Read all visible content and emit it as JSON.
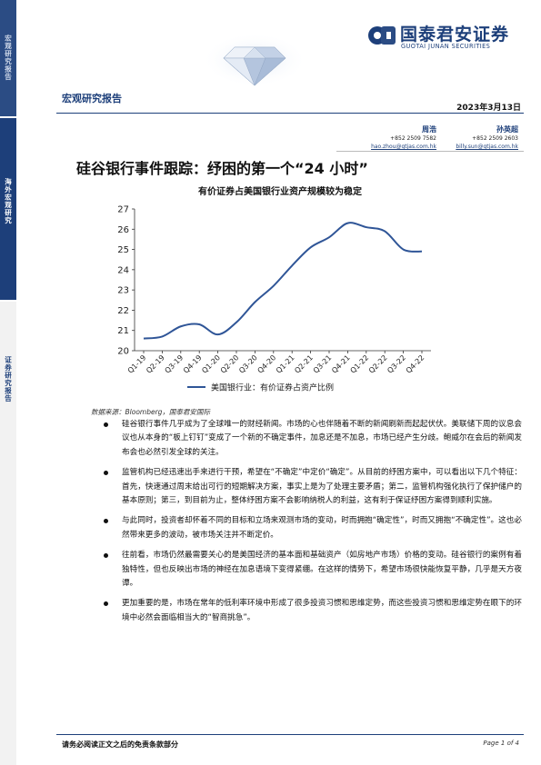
{
  "sidebar": {
    "section_1": "宏观研究报告",
    "section_2": "海外宏观研究",
    "section_3": "证券研究报告"
  },
  "logo": {
    "name_cn": "国泰君安证券",
    "name_en": "GUOTAI JUNAN SECURITIES",
    "brand_color": "#1d3f7a"
  },
  "header": {
    "report_type": "宏观研究报告",
    "date": "2023年3月13日"
  },
  "authors": [
    {
      "name": "周浩",
      "phone": "+852 2509 7582",
      "email": "hao.zhou@gtjas.com.hk"
    },
    {
      "name": "孙英超",
      "phone": "+852 2509 2603",
      "email": "billy.sun@gtjas.com.hk"
    }
  ],
  "title": "硅谷银行事件跟踪：纾困的第一个“24 小时”",
  "chart_data": {
    "type": "line",
    "title": "有价证券占美国银行业资产规模较为稳定",
    "categories": [
      "Q1-19",
      "Q2-19",
      "Q3-19",
      "Q4-19",
      "Q1-20",
      "Q2-20",
      "Q3-20",
      "Q4-20",
      "Q1-21",
      "Q2-21",
      "Q3-21",
      "Q4-21",
      "Q1-22",
      "Q2-22",
      "Q3-22",
      "Q4-22"
    ],
    "series": [
      {
        "name": "美国银行业：有价证券占资产比例",
        "values": [
          20.6,
          20.7,
          21.2,
          21.3,
          20.8,
          21.4,
          22.4,
          23.2,
          24.2,
          25.1,
          25.6,
          26.3,
          26.1,
          25.9,
          25.0,
          24.9
        ]
      }
    ],
    "xlabel": "",
    "ylabel": "",
    "ylim": [
      20,
      27
    ],
    "yticks": [
      20,
      21,
      22,
      23,
      24,
      25,
      26,
      27
    ],
    "grid": false,
    "legend_position": "bottom",
    "line_color": "#2f5597"
  },
  "source": "数据来源：Bloomberg，国泰君安国际",
  "bullets": [
    "硅谷银行事件几乎成为了全球唯一的财经新闻。市场的心也伴随着不断的新闻刷新而起起伏伏。美联储下周的议息会议也从本身的“板上钉钉”变成了一个新的不确定事件，加息还是不加息，市场已经产生分歧。鲍威尔在会后的新闻发布会也必然引发全球的关注。",
    "监管机构已经迅速出手来进行干预，希望在“不确定”中定价“确定”。从目前的纾困方案中，可以看出以下几个特征：首先，快速通过周末给出可行的短期解决方案，事实上是为了处理主要矛盾；第二，监管机构强化执行了保护储户的基本原则；第三，到目前为止，整体纾困方案不会影响纳税人的利益，这有利于保证纾困方案得到顺利实施。",
    "与此同时，投资者却怀着不同的目标和立场来观测市场的变动，时而拥抱“确定性”，时而又拥抱“不确定性”。这也必然带来更多的波动，被市场关注并不断定价。",
    "往前看，市场仍然最需要关心的是美国经济的基本面和基础资产（如房地产市场）价格的变动。硅谷银行的案例有着独特性，但也反映出市场的神经在加息语境下变得紧绷。在这样的情势下，希望市场很快能恢复平静，几乎是天方夜谭。",
    "更加重要的是，市场在常年的低利率环境中形成了很多投资习惯和思维定势，而这些投资习惯和思维定势在眼下的环境中必然会面临相当大的“智商挑急”。"
  ],
  "footer": {
    "disclaimer": "请务必阅读正文之后的免责条款部分",
    "page": "Page 1 of 4"
  }
}
